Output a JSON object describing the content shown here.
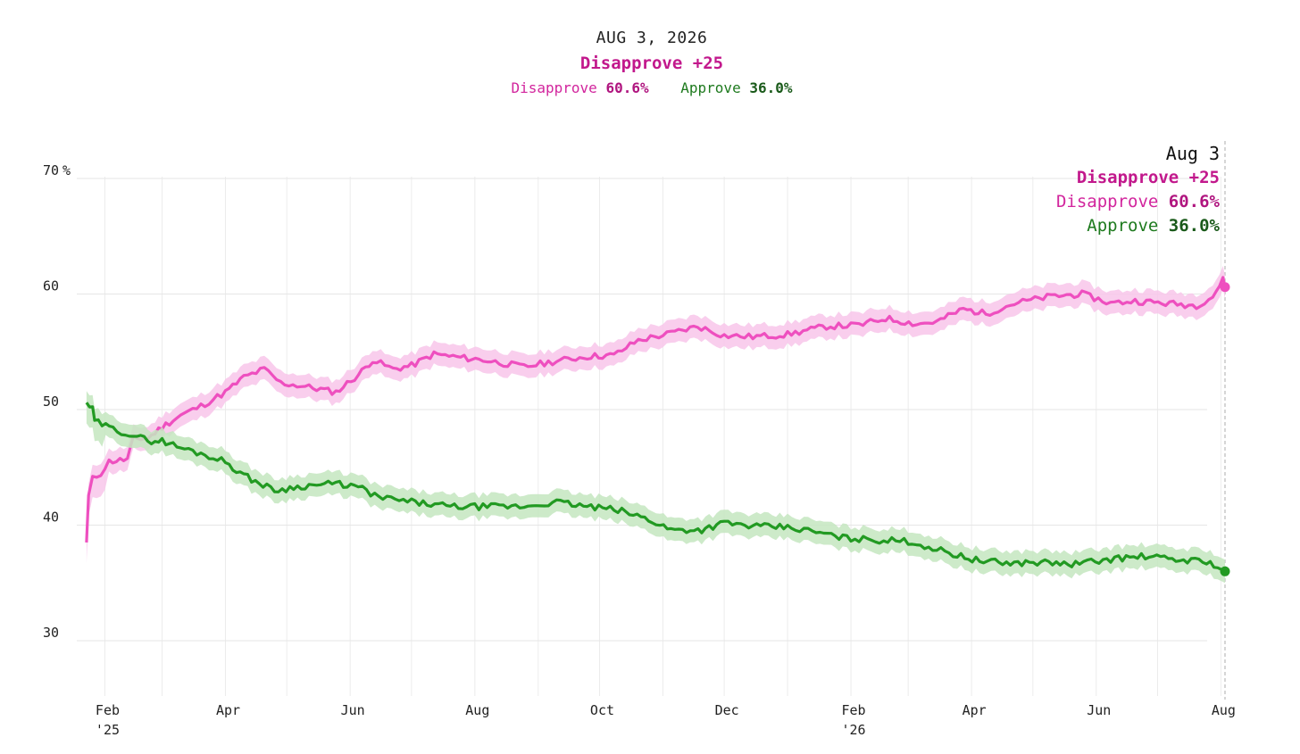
{
  "header": {
    "date": "AUG 3, 2026",
    "margin": "Disapprove +25",
    "disapprove_label": "Disapprove",
    "disapprove_value": "60.6%",
    "approve_label": "Approve",
    "approve_value": "36.0%"
  },
  "tooltip": {
    "date": "Aug 3",
    "margin": "Disapprove +25",
    "disapprove_label": "Disapprove",
    "disapprove_value": "60.6%",
    "approve_label": "Approve",
    "approve_value": "36.0%"
  },
  "colors": {
    "disapprove": "#ee4fbf",
    "disapprove_band": "#f8c6ea",
    "approve": "#229a22",
    "approve_band": "#c4e6c0"
  },
  "chart_data": {
    "type": "line",
    "title": "AUG 3, 2026",
    "x_range": [
      "2025-01-20",
      "2026-08-03"
    ],
    "ylim": [
      25,
      72
    ],
    "y_ticks": [
      {
        "value": 70,
        "label": "70"
      },
      {
        "value": 60,
        "label": "60"
      },
      {
        "value": 50,
        "label": "50"
      },
      {
        "value": 40,
        "label": "40"
      },
      {
        "value": 30,
        "label": "30"
      }
    ],
    "y_unit": "%",
    "x_ticks": [
      {
        "date": "2025-02-01",
        "label": "Feb",
        "year": "'25"
      },
      {
        "date": "2025-04-01",
        "label": "Apr"
      },
      {
        "date": "2025-06-01",
        "label": "Jun"
      },
      {
        "date": "2025-08-01",
        "label": "Aug"
      },
      {
        "date": "2025-10-01",
        "label": "Oct"
      },
      {
        "date": "2025-12-01",
        "label": "Dec"
      },
      {
        "date": "2026-02-01",
        "label": "Feb",
        "year": "'26"
      },
      {
        "date": "2026-04-01",
        "label": "Apr"
      },
      {
        "date": "2026-06-01",
        "label": "Jun"
      },
      {
        "date": "2026-08-01",
        "label": "Aug"
      }
    ],
    "grid": true,
    "series": [
      {
        "name": "Disapprove",
        "band_width": 1.0,
        "points": [
          [
            "2025-01-23",
            38.5
          ],
          [
            "2025-01-24",
            42.5
          ],
          [
            "2025-01-26",
            44.0
          ],
          [
            "2025-01-30",
            44.5
          ],
          [
            "2025-02-03",
            45.5
          ],
          [
            "2025-02-12",
            45.7
          ],
          [
            "2025-02-15",
            47.5
          ],
          [
            "2025-02-22",
            47.5
          ],
          [
            "2025-03-01",
            48.5
          ],
          [
            "2025-03-10",
            49.5
          ],
          [
            "2025-03-20",
            50.3
          ],
          [
            "2025-04-01",
            51.5
          ],
          [
            "2025-04-10",
            52.8
          ],
          [
            "2025-04-20",
            53.5
          ],
          [
            "2025-04-28",
            52.3
          ],
          [
            "2025-05-10",
            52.0
          ],
          [
            "2025-05-25",
            51.5
          ],
          [
            "2025-06-05",
            53.0
          ],
          [
            "2025-06-12",
            54.3
          ],
          [
            "2025-06-22",
            53.5
          ],
          [
            "2025-07-01",
            53.8
          ],
          [
            "2025-07-12",
            54.8
          ],
          [
            "2025-07-25",
            54.5
          ],
          [
            "2025-08-05",
            54.3
          ],
          [
            "2025-08-25",
            53.7
          ],
          [
            "2025-09-10",
            54.2
          ],
          [
            "2025-09-25",
            54.6
          ],
          [
            "2025-10-08",
            54.7
          ],
          [
            "2025-10-20",
            56.0
          ],
          [
            "2025-11-05",
            56.6
          ],
          [
            "2025-11-18",
            57.2
          ],
          [
            "2025-12-01",
            56.4
          ],
          [
            "2025-12-15",
            56.3
          ],
          [
            "2026-01-01",
            56.5
          ],
          [
            "2026-01-20",
            57.2
          ],
          [
            "2026-02-05",
            57.3
          ],
          [
            "2026-02-18",
            57.9
          ],
          [
            "2026-03-05",
            57.4
          ],
          [
            "2026-03-15",
            57.6
          ],
          [
            "2026-03-28",
            58.7
          ],
          [
            "2026-04-08",
            58.3
          ],
          [
            "2026-04-22",
            59.2
          ],
          [
            "2026-05-10",
            59.8
          ],
          [
            "2026-05-25",
            60.0
          ],
          [
            "2026-06-08",
            59.2
          ],
          [
            "2026-06-20",
            59.4
          ],
          [
            "2026-07-05",
            59.2
          ],
          [
            "2026-07-20",
            59.0
          ],
          [
            "2026-07-28",
            59.8
          ],
          [
            "2026-08-02",
            61.2
          ],
          [
            "2026-08-03",
            60.6
          ]
        ]
      },
      {
        "name": "Approve",
        "band_width": 1.0,
        "points": [
          [
            "2025-01-23",
            50.6
          ],
          [
            "2025-01-26",
            50.0
          ],
          [
            "2025-01-27",
            49.0
          ],
          [
            "2025-02-05",
            48.3
          ],
          [
            "2025-02-15",
            47.8
          ],
          [
            "2025-02-22",
            47.3
          ],
          [
            "2025-03-01",
            47.3
          ],
          [
            "2025-03-10",
            46.7
          ],
          [
            "2025-03-20",
            46.2
          ],
          [
            "2025-04-01",
            45.5
          ],
          [
            "2025-04-10",
            44.3
          ],
          [
            "2025-04-25",
            43.0
          ],
          [
            "2025-05-10",
            43.4
          ],
          [
            "2025-05-25",
            43.6
          ],
          [
            "2025-06-05",
            43.3
          ],
          [
            "2025-06-15",
            42.4
          ],
          [
            "2025-07-01",
            42.0
          ],
          [
            "2025-07-20",
            41.6
          ],
          [
            "2025-08-05",
            41.6
          ],
          [
            "2025-08-25",
            41.6
          ],
          [
            "2025-09-10",
            42.0
          ],
          [
            "2025-09-25",
            41.6
          ],
          [
            "2025-10-10",
            41.3
          ],
          [
            "2025-10-25",
            40.5
          ],
          [
            "2025-11-05",
            39.6
          ],
          [
            "2025-11-20",
            39.6
          ],
          [
            "2025-12-01",
            40.2
          ],
          [
            "2025-12-15",
            39.9
          ],
          [
            "2026-01-01",
            39.8
          ],
          [
            "2026-01-15",
            39.4
          ],
          [
            "2026-01-28",
            38.9
          ],
          [
            "2026-02-15",
            38.7
          ],
          [
            "2026-03-01",
            38.6
          ],
          [
            "2026-03-15",
            37.9
          ],
          [
            "2026-03-25",
            37.4
          ],
          [
            "2026-04-05",
            36.9
          ],
          [
            "2026-04-20",
            36.7
          ],
          [
            "2026-05-05",
            36.8
          ],
          [
            "2026-05-20",
            36.6
          ],
          [
            "2026-06-10",
            37.1
          ],
          [
            "2026-06-25",
            37.3
          ],
          [
            "2026-07-10",
            37.0
          ],
          [
            "2026-07-25",
            36.9
          ],
          [
            "2026-08-03",
            36.0
          ]
        ]
      }
    ]
  }
}
